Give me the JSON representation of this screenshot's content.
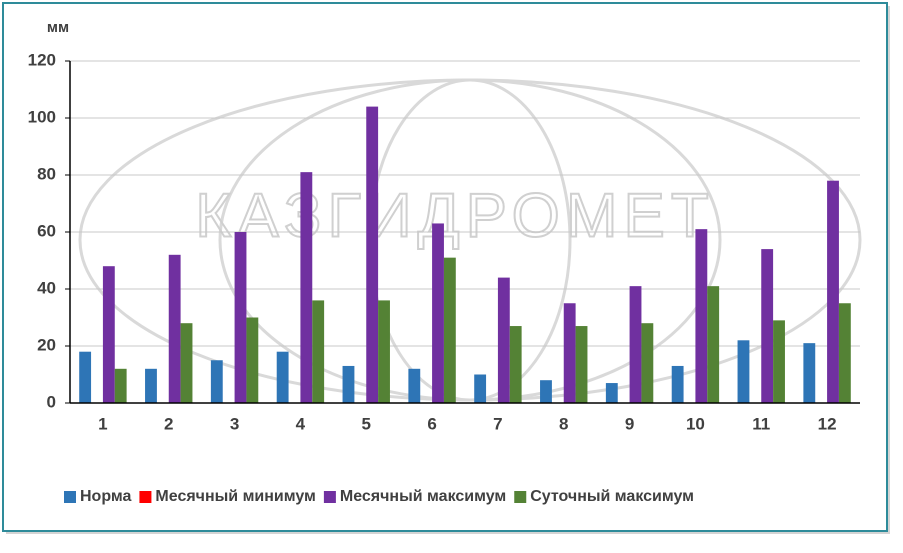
{
  "chart_data": {
    "type": "bar",
    "y_label": "мм",
    "watermark": "КАЗГИДРОМЕТ",
    "categories": [
      "1",
      "2",
      "3",
      "4",
      "5",
      "6",
      "7",
      "8",
      "9",
      "10",
      "11",
      "12"
    ],
    "series": [
      {
        "name": "Норма",
        "color": "#2e75b6",
        "values": [
          18,
          12,
          15,
          18,
          13,
          12,
          10,
          8,
          7,
          13,
          22,
          21
        ]
      },
      {
        "name": "Месячный минимум",
        "color": "#ff0000",
        "values": [
          0,
          0,
          0,
          0,
          0,
          0,
          0,
          0,
          0,
          0,
          0,
          0
        ]
      },
      {
        "name": "Месячный максимум",
        "color": "#7030a0",
        "values": [
          48,
          52,
          60,
          81,
          104,
          63,
          44,
          35,
          41,
          61,
          54,
          78
        ]
      },
      {
        "name": "Суточный максимум",
        "color": "#548235",
        "values": [
          12,
          28,
          30,
          36,
          36,
          51,
          27,
          27,
          28,
          41,
          29,
          35
        ]
      }
    ],
    "ylim": [
      0,
      120
    ],
    "yticks": [
      0,
      20,
      40,
      60,
      80,
      100,
      120
    ],
    "grid": true,
    "legend": "bottom"
  }
}
